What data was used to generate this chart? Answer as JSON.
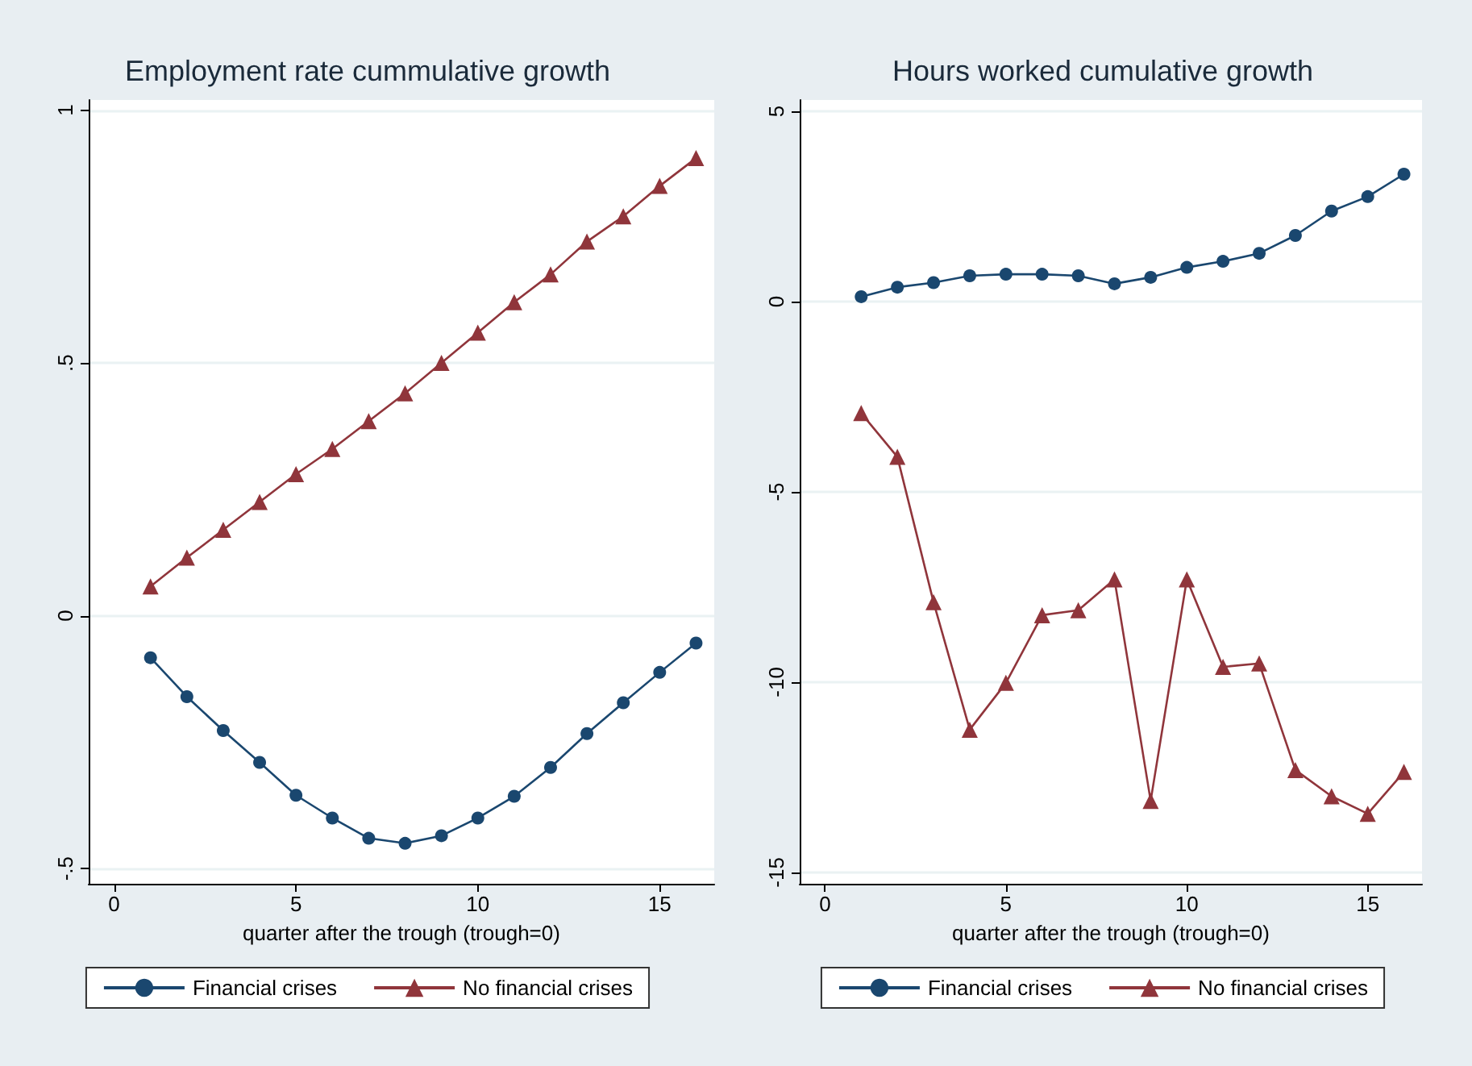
{
  "chart_data": [
    {
      "type": "line",
      "title": "Employment rate cummulative growth",
      "xlabel": "quarter after the trough (trough=0)",
      "x": [
        1,
        2,
        3,
        4,
        5,
        6,
        7,
        8,
        9,
        10,
        11,
        12,
        13,
        14,
        15,
        16
      ],
      "series": [
        {
          "name": "Financial crises",
          "color": "#1a476f",
          "marker": "circle",
          "values": [
            -0.083,
            -0.16,
            -0.227,
            -0.29,
            -0.355,
            -0.4,
            -0.44,
            -0.45,
            -0.435,
            -0.4,
            -0.357,
            -0.3,
            -0.233,
            -0.172,
            -0.112,
            -0.054
          ]
        },
        {
          "name": "No financial crises",
          "color": "#90353b",
          "marker": "triangle",
          "values": [
            0.058,
            0.115,
            0.17,
            0.225,
            0.28,
            0.33,
            0.385,
            0.44,
            0.5,
            0.56,
            0.62,
            0.675,
            0.74,
            0.79,
            0.85,
            0.905
          ]
        }
      ],
      "xlim": [
        -0.7,
        16.5
      ],
      "xticks": [
        0,
        5,
        10,
        15
      ],
      "ylim": [
        -0.53,
        1.02
      ],
      "yticks": [
        {
          "value": -0.5,
          "label": "-.5"
        },
        0,
        {
          "value": 0.5,
          "label": ".5"
        },
        1
      ],
      "grid": "y",
      "legend": "bottom",
      "line_style": "solid"
    },
    {
      "type": "line",
      "title": "Hours worked cumulative growth",
      "xlabel": "quarter after the trough (trough=0)",
      "x": [
        1,
        2,
        3,
        4,
        5,
        6,
        7,
        8,
        9,
        10,
        11,
        12,
        13,
        14,
        15,
        16
      ],
      "series": [
        {
          "name": "Financial crises",
          "color": "#1a476f",
          "marker": "circle",
          "values": [
            0.13,
            0.38,
            0.5,
            0.68,
            0.72,
            0.72,
            0.68,
            0.47,
            0.64,
            0.9,
            1.06,
            1.27,
            1.74,
            2.38,
            2.76,
            3.35
          ]
        },
        {
          "name": "No financial crises",
          "color": "#90353b",
          "marker": "triangle",
          "values": [
            -2.93,
            -4.08,
            -7.9,
            -11.25,
            -10.02,
            -8.24,
            -8.11,
            -7.3,
            -13.12,
            -7.3,
            -9.6,
            -9.51,
            -12.31,
            -13.0,
            -13.46,
            -12.36
          ]
        }
      ],
      "xlim": [
        -0.7,
        16.5
      ],
      "xticks": [
        0,
        5,
        10,
        15
      ],
      "ylim": [
        -15.3,
        5.3
      ],
      "yticks": [
        -15,
        -10,
        -5,
        0,
        5
      ],
      "grid": "y",
      "legend": "bottom",
      "line_style": "solid"
    }
  ]
}
